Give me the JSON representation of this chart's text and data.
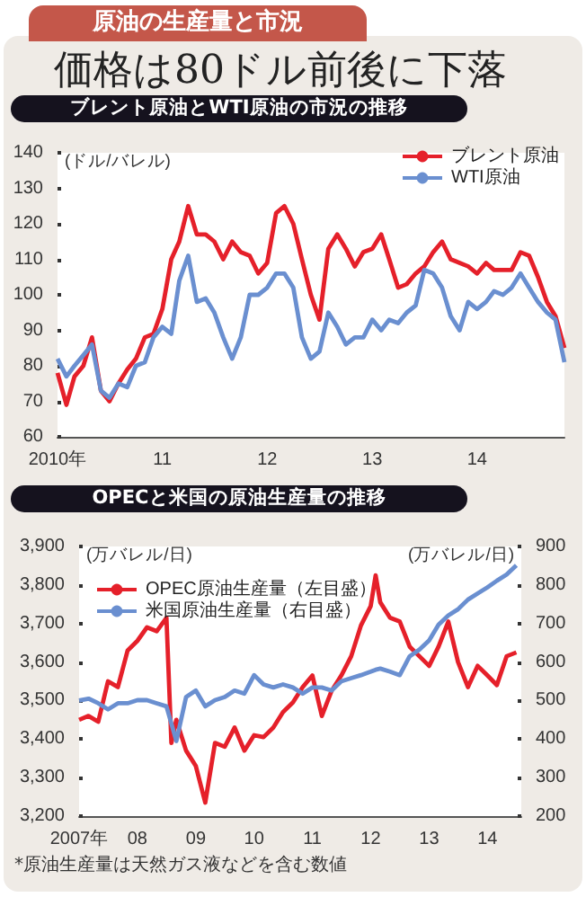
{
  "chart_data": [
    {
      "type": "line",
      "title": "ブレント原油とWTI原油の市況の推移",
      "ylabel": "(ドル/バレル)",
      "annotations": [
        "原油の生産量と市況",
        "価格は80ドル前後に下落"
      ],
      "x": [
        "2010-01",
        "2010-02",
        "2010-03",
        "2010-04",
        "2010-05",
        "2010-06",
        "2010-07",
        "2010-08",
        "2010-09",
        "2010-10",
        "2010-11",
        "2010-12",
        "2011-01",
        "2011-02",
        "2011-03",
        "2011-04",
        "2011-05",
        "2011-06",
        "2011-07",
        "2011-08",
        "2011-09",
        "2011-10",
        "2011-11",
        "2011-12",
        "2012-01",
        "2012-02",
        "2012-03",
        "2012-04",
        "2012-05",
        "2012-06",
        "2012-07",
        "2012-08",
        "2012-09",
        "2012-10",
        "2012-11",
        "2012-12",
        "2013-01",
        "2013-02",
        "2013-03",
        "2013-04",
        "2013-05",
        "2013-06",
        "2013-07",
        "2013-08",
        "2013-09",
        "2013-10",
        "2013-11",
        "2013-12",
        "2014-01",
        "2014-02",
        "2014-03",
        "2014-04",
        "2014-05",
        "2014-06",
        "2014-07",
        "2014-08",
        "2014-09",
        "2014-10",
        "2014-11"
      ],
      "series": [
        {
          "name": "ブレント原油",
          "color": "#e5202a",
          "values": [
            78,
            69,
            77,
            80,
            88,
            73,
            70,
            75,
            79,
            82,
            88,
            89,
            96,
            110,
            115,
            125,
            117,
            117,
            115,
            110,
            115,
            112,
            111,
            106,
            109,
            123,
            125,
            120,
            110,
            100,
            93,
            113,
            117,
            113,
            108,
            112,
            113,
            117,
            110,
            102,
            103,
            106,
            108,
            112,
            115,
            110,
            109,
            108,
            106,
            109,
            107,
            107,
            107,
            112,
            111,
            105,
            98,
            94,
            85
          ]
        },
        {
          "name": "WTI原油",
          "color": "#6a8fd0",
          "values": [
            82,
            77,
            80,
            83,
            86,
            73,
            71,
            75,
            74,
            80,
            81,
            88,
            91,
            89,
            104,
            111,
            98,
            99,
            95,
            88,
            82,
            88,
            100,
            100,
            102,
            106,
            106,
            102,
            88,
            82,
            84,
            95,
            91,
            86,
            88,
            88,
            93,
            90,
            93,
            92,
            95,
            97,
            107,
            106,
            102,
            94,
            90,
            98,
            96,
            98,
            101,
            100,
            102,
            106,
            102,
            98,
            95,
            93,
            81
          ]
        }
      ],
      "xlim": [
        "2010-01",
        "2014-11"
      ],
      "xticks": [
        {
          "value": "2010-01",
          "label": "2010年"
        },
        {
          "value": "2011-01",
          "label": "11"
        },
        {
          "value": "2012-01",
          "label": "12"
        },
        {
          "value": "2013-01",
          "label": "13"
        },
        {
          "value": "2014-01",
          "label": "14"
        }
      ],
      "ylim": [
        60,
        140
      ],
      "yticks": [
        60,
        70,
        80,
        90,
        100,
        110,
        120,
        130,
        140
      ],
      "legend": "top right"
    },
    {
      "type": "line",
      "title": "OPECと米国の原油生産量の推移",
      "ylabel": "(万バレル/日)",
      "y2label": "(万バレル/日)",
      "annotations": [
        "*原油生産量は天然ガス液などを含む数値"
      ],
      "x": [
        "2007-01",
        "2007-03",
        "2007-05",
        "2007-07",
        "2007-09",
        "2007-11",
        "2008-01",
        "2008-03",
        "2008-05",
        "2008-07",
        "2008-08",
        "2008-09",
        "2008-11",
        "2009-01",
        "2009-03",
        "2009-05",
        "2009-07",
        "2009-09",
        "2009-11",
        "2010-01",
        "2010-03",
        "2010-05",
        "2010-07",
        "2010-09",
        "2010-11",
        "2011-01",
        "2011-03",
        "2011-05",
        "2011-07",
        "2011-09",
        "2011-11",
        "2012-01",
        "2012-02",
        "2012-03",
        "2012-05",
        "2012-07",
        "2012-09",
        "2012-11",
        "2013-01",
        "2013-03",
        "2013-05",
        "2013-07",
        "2013-09",
        "2013-11",
        "2014-01",
        "2014-03",
        "2014-05",
        "2014-07"
      ],
      "series": [
        {
          "name": "OPEC原油生産量（左目盛）",
          "color": "#e5202a",
          "values": [
            3450,
            3460,
            3445,
            3550,
            3535,
            3630,
            3655,
            3690,
            3680,
            3715,
            3390,
            3450,
            3370,
            3330,
            3235,
            3390,
            3380,
            3430,
            3370,
            3410,
            3405,
            3430,
            3470,
            3495,
            3535,
            3565,
            3460,
            3525,
            3565,
            3615,
            3695,
            3745,
            3825,
            3755,
            3715,
            3705,
            3640,
            3615,
            3590,
            3640,
            3705,
            3600,
            3535,
            3590,
            3565,
            3540,
            3615,
            3625
          ]
        },
        {
          "name": "米国原油生産量（右目盛）",
          "color": "#6a8fd0",
          "axis": "y2",
          "values": [
            500,
            505,
            493,
            477,
            493,
            493,
            501,
            501,
            493,
            485,
            440,
            395,
            509,
            526,
            485,
            501,
            509,
            526,
            518,
            566,
            542,
            534,
            542,
            534,
            518,
            534,
            534,
            526,
            550,
            558,
            566,
            575,
            580,
            583,
            575,
            566,
            615,
            632,
            656,
            697,
            721,
            737,
            762,
            778,
            794,
            811,
            827,
            851
          ]
        }
      ],
      "xlim": [
        "2007-01",
        "2014-08"
      ],
      "xticks": [
        {
          "value": "2007-01",
          "label": "2007年"
        },
        {
          "value": "2008-01",
          "label": "08"
        },
        {
          "value": "2009-01",
          "label": "09"
        },
        {
          "value": "2010-01",
          "label": "10"
        },
        {
          "value": "2011-01",
          "label": "11"
        },
        {
          "value": "2012-01",
          "label": "12"
        },
        {
          "value": "2013-01",
          "label": "13"
        },
        {
          "value": "2014-01",
          "label": "14"
        }
      ],
      "ylim": [
        3200,
        3900
      ],
      "yticks": [
        {
          "value": 3200,
          "label": "3,200"
        },
        {
          "value": 3300,
          "label": "3,300"
        },
        {
          "value": 3400,
          "label": "3,400"
        },
        {
          "value": 3500,
          "label": "3,500"
        },
        {
          "value": 3600,
          "label": "3,600"
        },
        {
          "value": 3700,
          "label": "3,700"
        },
        {
          "value": 3800,
          "label": "3,800"
        },
        {
          "value": 3900,
          "label": "3,900"
        }
      ],
      "y2lim": [
        200,
        900
      ],
      "y2ticks": [
        200,
        300,
        400,
        500,
        600,
        700,
        800,
        900
      ],
      "legend": "top left"
    }
  ]
}
